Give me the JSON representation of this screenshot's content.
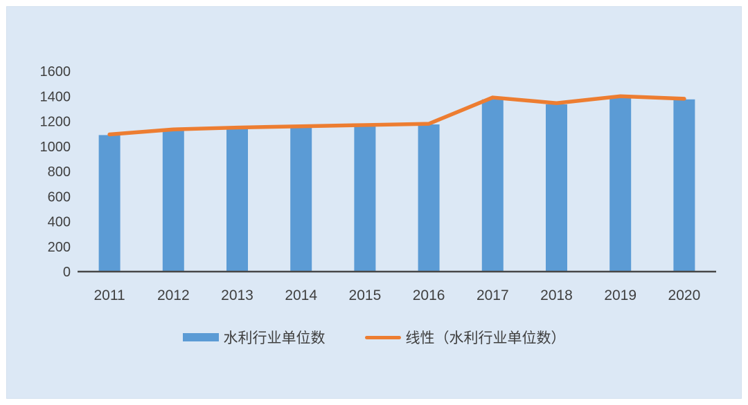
{
  "chart_data": {
    "type": "bar",
    "title": "",
    "categories": [
      "2011",
      "2012",
      "2013",
      "2014",
      "2015",
      "2016",
      "2017",
      "2018",
      "2019",
      "2020"
    ],
    "series": [
      {
        "name": "水利行业单位数",
        "type": "bar",
        "color": "#5B9BD5",
        "values": [
          1090,
          1130,
          1140,
          1150,
          1160,
          1175,
          1375,
          1335,
          1390,
          1375
        ]
      },
      {
        "name": "线性（水利行业单位数）",
        "type": "line",
        "color": "#ED7D31",
        "values": [
          1095,
          1135,
          1150,
          1160,
          1170,
          1180,
          1390,
          1345,
          1400,
          1380
        ]
      }
    ],
    "xlabel": "",
    "ylabel": "",
    "ylim": [
      0,
      1600
    ],
    "ytick_step": 200,
    "yticks": [
      "0",
      "200",
      "400",
      "600",
      "800",
      "1000",
      "1200",
      "1400",
      "1600"
    ],
    "grid": false,
    "legend_position": "bottom",
    "colors": {
      "background_panel": "#dce8f5",
      "axis_line": "#474747",
      "tick_label": "#3f3f3f",
      "bar_fill": "#5B9BD5",
      "trend_line": "#ED7D31"
    }
  }
}
